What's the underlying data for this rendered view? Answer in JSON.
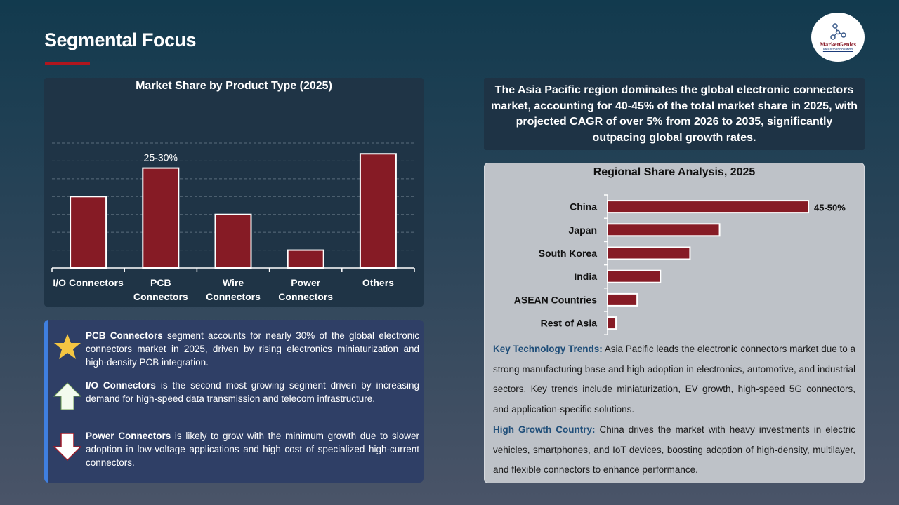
{
  "page": {
    "title": "Segmental Focus"
  },
  "logo": {
    "name": "MarketGenics",
    "tagline": "Ideas to Innovation"
  },
  "colors": {
    "accent": "#b0161e",
    "bar": "#861b25",
    "panel_dark": "#1f3446",
    "panel_blue": "#2f3f66",
    "panel_light": "#bec2c8"
  },
  "chart_data": [
    {
      "type": "bar",
      "title": "Market Share by Product Type (2025)",
      "categories": [
        "I/O Connectors",
        "PCB Connectors",
        "Wire Connectors",
        "Power Connectors",
        "Others"
      ],
      "category_lines": [
        [
          "I/O Connectors"
        ],
        [
          "PCB",
          "Connectors"
        ],
        [
          "Wire",
          "Connectors"
        ],
        [
          "Power",
          "Connectors"
        ],
        [
          "Others"
        ]
      ],
      "values": [
        20,
        28,
        15,
        5,
        32
      ],
      "data_labels": [
        "",
        "25-30%",
        "",
        "",
        ""
      ],
      "ylim": [
        0,
        35
      ],
      "grid": true,
      "grid_style": "dashed"
    },
    {
      "type": "bar",
      "orientation": "horizontal",
      "title": "Regional Share Analysis, 2025",
      "categories": [
        "China",
        "Japan",
        "South Korea",
        "India",
        "ASEAN Countries",
        "Rest of Asia"
      ],
      "values": [
        47.5,
        26.5,
        19.5,
        12.5,
        7,
        2
      ],
      "data_labels": [
        "45-50%",
        "",
        "",
        "",
        "",
        ""
      ],
      "xlim": [
        0,
        47.5
      ],
      "grid": false
    }
  ],
  "highlights": [
    {
      "icon": "star-icon",
      "bold": "PCB Connectors",
      "text": " segment accounts for nearly 30% of the global electronic connectors market in 2025, driven by rising electronics miniaturization and high-density PCB integration."
    },
    {
      "icon": "arrow-up-icon",
      "bold": "I/O Connectors",
      "text": " is the second most growing segment driven by increasing demand for high-speed data transmission and telecom infrastructure."
    },
    {
      "icon": "arrow-down-icon",
      "bold": "Power Connectors",
      "text": " is likely to grow with the minimum growth due to slower adoption in low-voltage applications and high cost of specialized high-current connectors."
    }
  ],
  "summary": "The Asia Pacific region dominates the global electronic connectors market, accounting for 40-45% of the total market share in 2025, with projected CAGR of over 5% from 2026 to 2035, significantly outpacing global growth rates.",
  "trends": [
    {
      "key": "Key Technology Trends:",
      "text": " Asia Pacific leads the electronic connectors market due to a strong manufacturing base and high adoption in electronics, automotive, and industrial sectors. Key trends include miniaturization, EV growth, high-speed 5G connectors, and application-specific solutions."
    },
    {
      "key": "High Growth Country:",
      "text": " China drives the market with heavy investments in electric vehicles, smartphones, and IoT devices, boosting adoption of high-density, multilayer, and flexible connectors to enhance performance."
    }
  ]
}
